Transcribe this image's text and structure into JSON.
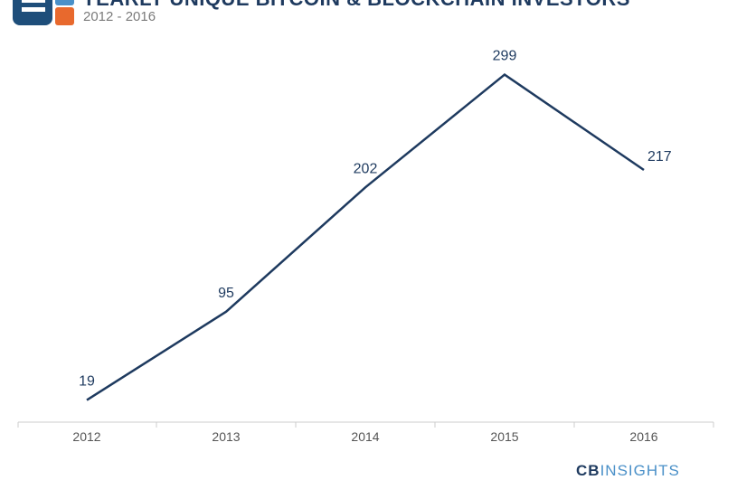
{
  "header": {
    "title": "YEARLY UNIQUE BITCOIN & BLOCKCHAIN INVESTORS",
    "subtitle": "2012 - 2016"
  },
  "colors": {
    "line": "#1e3a5f",
    "logo_primary": "#1e4e7a",
    "logo_accent": "#e8692d",
    "axis": "#cccccc"
  },
  "chart_data": {
    "type": "line",
    "title": "YEARLY UNIQUE BITCOIN & BLOCKCHAIN INVESTORS",
    "subtitle": "2012 - 2016",
    "categories": [
      "2012",
      "2013",
      "2014",
      "2015",
      "2016"
    ],
    "series": [
      {
        "values": [
          19,
          95,
          202,
          299,
          217
        ]
      }
    ],
    "data_labels": [
      "19",
      "95",
      "202",
      "299",
      "217"
    ],
    "xlabel": "",
    "ylabel": "",
    "ylim": [
      0,
      315
    ],
    "grid": false,
    "legend": "none"
  },
  "footer": {
    "brand_part1": "CB",
    "brand_part2": "INSIGHTS"
  }
}
